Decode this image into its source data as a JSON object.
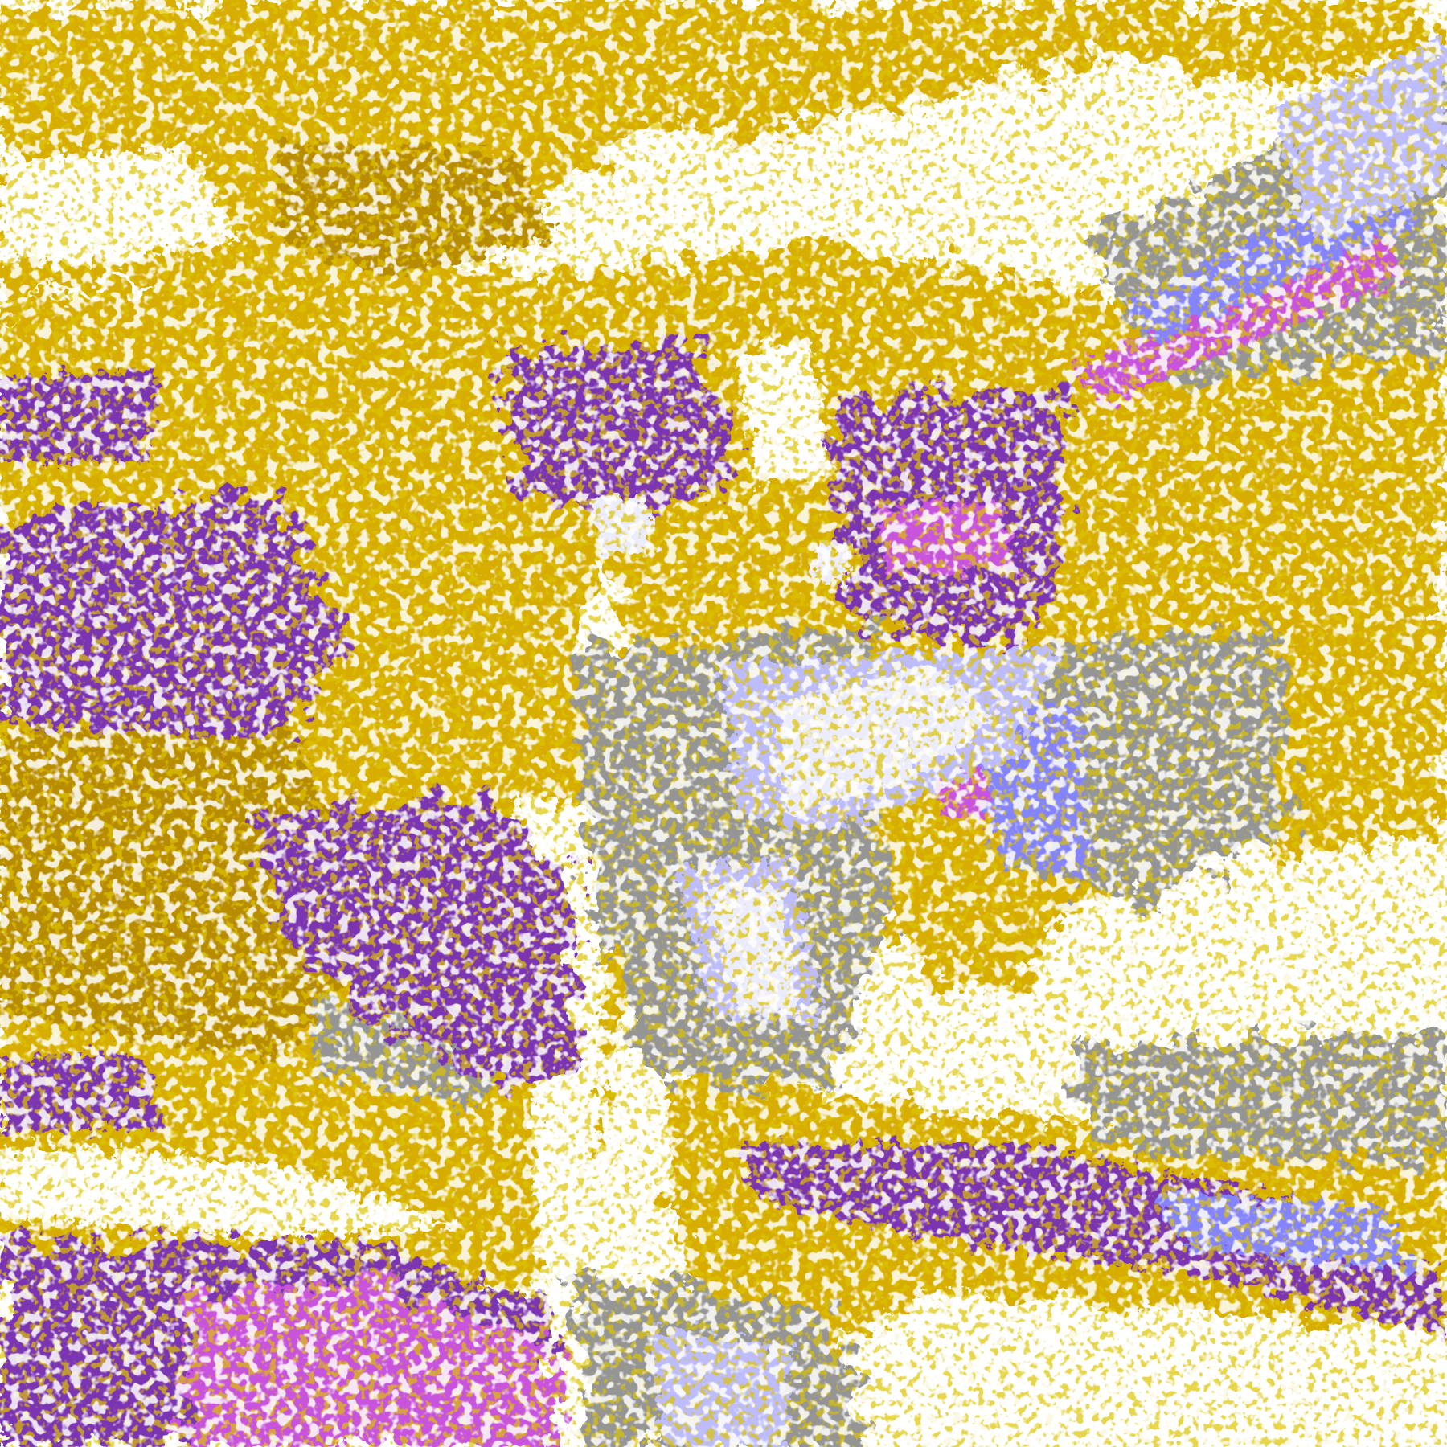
{
  "image": {
    "kind": "false-color satellite cloud classification",
    "palette": {
      "clear": "#ffffff",
      "gold": "#d6ad00",
      "dark_gold": "#b88c00",
      "purple": "#7b36b2",
      "magenta": "#c852dc",
      "gray": "#959595",
      "periwinkle": "#8484ff",
      "lavender": "#bcbcff",
      "pale": "#ececff"
    }
  }
}
